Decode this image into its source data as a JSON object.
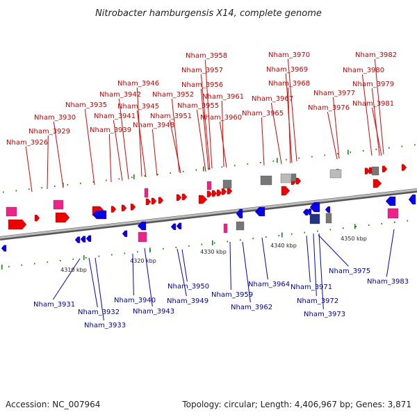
{
  "title": "Nitrobacter hamburgensis X14, complete genome",
  "footer": {
    "accession": "Accession: NC_007964",
    "topology": "Topology: circular; Length: 4,406,967 bp; Genes: 3,871"
  },
  "colors": {
    "forward": "#ee0000",
    "reverse": "#0000ee",
    "forward_label": "#cc0000",
    "reverse_label": "#0000aa",
    "pseudo": "#ee2288",
    "rna": "#777777",
    "backbone": "#999999",
    "tick": "#118811"
  },
  "kbp_labels": [
    "4310 kbp",
    "4320 kbp",
    "4330 kbp",
    "4340 kbp",
    "4350 kbp"
  ],
  "genes_top": [
    "Nham_3926",
    "Nham_3929",
    "Nham_3930",
    "Nham_3935",
    "Nham_3939",
    "Nham_3941",
    "Nham_3942",
    "Nham_3945",
    "Nham_3946",
    "Nham_3948",
    "Nham_3951",
    "Nham_3952",
    "Nham_3955",
    "Nham_3956",
    "Nham_3957",
    "Nham_3958",
    "Nham_3960",
    "Nham_3961",
    "Nham_3965",
    "Nham_3967",
    "Nham_3968",
    "Nham_3969",
    "Nham_3970",
    "Nham_3976",
    "Nham_3977",
    "Nham_3979",
    "Nham_3980",
    "Nham_3981",
    "Nham_3982"
  ],
  "genes_bottom": [
    "Nham_3931",
    "Nham_3932",
    "Nham_3933",
    "Nham_3940",
    "Nham_3943",
    "Nham_3949",
    "Nham_3950",
    "Nham_3959",
    "Nham_3962",
    "Nham_3964",
    "Nham_3971",
    "Nham_3972",
    "Nham_3973",
    "Nham_3975",
    "Nham_3983"
  ]
}
